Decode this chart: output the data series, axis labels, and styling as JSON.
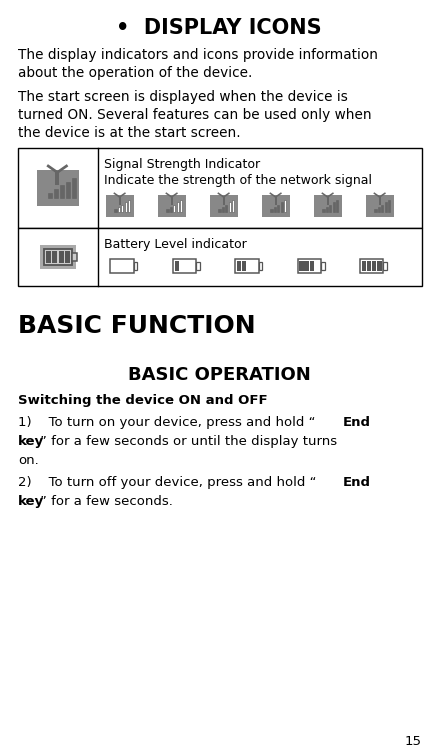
{
  "title": "DISPLAY ICONS",
  "bg_color": "#ffffff",
  "text_color": "#000000",
  "page_number": "15",
  "p1_lines": [
    "The display indicators and icons provide information",
    "about the operation of the device."
  ],
  "p2_lines": [
    "The start screen is displayed when the device is",
    "turned ON. Several features can be used only when",
    "the device is at the start screen."
  ],
  "table_row1_label": "Signal Strength Indicator",
  "table_row1_sub": "Indicate the strength of the network signal",
  "table_row2_label": "Battery Level indicator",
  "section_title": "BASIC FUNCTION",
  "subsection_title": "BASIC OPERATION",
  "switching_label": "Switching the device ON and OFF",
  "step1_line1": "1)    To turn on your device, press and hold “End",
  "step1_line2": "key” for a few seconds or until the display turns",
  "step1_line3": "on.",
  "step2_line1": "2)    To turn off your device, press and hold “End",
  "step2_line2": "key” for a few seconds.",
  "icon_color": "#666666",
  "icon_bg": "#aaaaaa",
  "font_family": "DejaVu Sans"
}
